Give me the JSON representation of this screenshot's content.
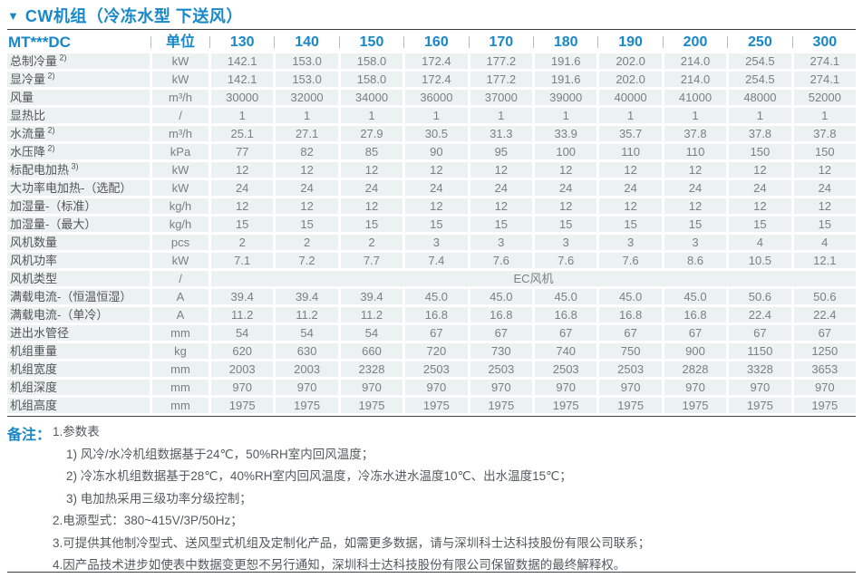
{
  "icons": {
    "triangle_down": "▼"
  },
  "colors": {
    "accent_blue": "#1888c8",
    "cell_band": "#ecf2f1",
    "value_gray": "#7b8081"
  },
  "title": "CW机组（冷冻水型 下送风）",
  "table": {
    "model_header": "MT***DC",
    "unit_header": "单位",
    "columns": [
      "130",
      "140",
      "150",
      "160",
      "170",
      "180",
      "190",
      "200",
      "250",
      "300"
    ],
    "rows": [
      {
        "label": "总制冷量",
        "sup": "2)",
        "unit": "kW",
        "values": [
          "142.1",
          "153.0",
          "158.0",
          "172.4",
          "177.2",
          "191.6",
          "202.0",
          "214.0",
          "254.5",
          "274.1"
        ]
      },
      {
        "label": "显冷量",
        "sup": "2)",
        "unit": "kW",
        "values": [
          "142.1",
          "153.0",
          "158.0",
          "172.4",
          "177.2",
          "191.6",
          "202.0",
          "214.0",
          "254.5",
          "274.1"
        ]
      },
      {
        "label": "风量",
        "unit": "m³/h",
        "values": [
          "30000",
          "32000",
          "34000",
          "36000",
          "37000",
          "39000",
          "40000",
          "41000",
          "48000",
          "52000"
        ]
      },
      {
        "label": "显热比",
        "unit": "/",
        "values": [
          "1",
          "1",
          "1",
          "1",
          "1",
          "1",
          "1",
          "1",
          "1",
          "1"
        ]
      },
      {
        "label": "水流量",
        "sup": "2)",
        "unit": "m³/h",
        "values": [
          "25.1",
          "27.1",
          "27.9",
          "30.5",
          "31.3",
          "33.9",
          "35.7",
          "37.8",
          "37.8",
          "37.8"
        ]
      },
      {
        "label": "水压降",
        "sup": "2)",
        "unit": "kPa",
        "values": [
          "77",
          "82",
          "85",
          "90",
          "95",
          "100",
          "110",
          "110",
          "150",
          "150"
        ]
      },
      {
        "label": "标配电加热",
        "sup": "3)",
        "unit": "kW",
        "values": [
          "12",
          "12",
          "12",
          "12",
          "12",
          "12",
          "12",
          "12",
          "12",
          "12"
        ]
      },
      {
        "label": "大功率电加热-（选配）",
        "unit": "kW",
        "values": [
          "24",
          "24",
          "24",
          "24",
          "24",
          "24",
          "24",
          "24",
          "24",
          "24"
        ]
      },
      {
        "label": "加湿量-（标准）",
        "unit": "kg/h",
        "values": [
          "12",
          "12",
          "12",
          "12",
          "12",
          "12",
          "12",
          "12",
          "12",
          "12"
        ]
      },
      {
        "label": "加湿量-（最大）",
        "unit": "kg/h",
        "values": [
          "15",
          "15",
          "15",
          "15",
          "15",
          "15",
          "15",
          "15",
          "15",
          "15"
        ]
      },
      {
        "label": "风机数量",
        "unit": "pcs",
        "values": [
          "2",
          "2",
          "2",
          "3",
          "3",
          "3",
          "3",
          "3",
          "4",
          "4"
        ]
      },
      {
        "label": "风机功率",
        "unit": "kW",
        "values": [
          "7.1",
          "7.2",
          "7.7",
          "7.4",
          "7.6",
          "7.6",
          "7.6",
          "8.6",
          "10.5",
          "12.1"
        ]
      },
      {
        "label": "风机类型",
        "unit": "/",
        "span_value": "EC风机"
      },
      {
        "label": "满载电流-（恒温恒湿）",
        "unit": "A",
        "values": [
          "39.4",
          "39.4",
          "39.4",
          "45.0",
          "45.0",
          "45.0",
          "45.0",
          "45.0",
          "50.6",
          "50.6"
        ]
      },
      {
        "label": "满载电流-（单冷）",
        "unit": "A",
        "values": [
          "11.2",
          "11.2",
          "11.2",
          "16.8",
          "16.8",
          "16.8",
          "16.8",
          "16.8",
          "22.4",
          "22.4"
        ]
      },
      {
        "label": "进出水管径",
        "unit": "mm",
        "values": [
          "54",
          "54",
          "54",
          "67",
          "67",
          "67",
          "67",
          "67",
          "67",
          "67"
        ]
      },
      {
        "label": "机组重量",
        "unit": "kg",
        "values": [
          "620",
          "630",
          "660",
          "720",
          "730",
          "740",
          "750",
          "900",
          "1150",
          "1250"
        ]
      },
      {
        "label": "机组宽度",
        "unit": "mm",
        "values": [
          "2003",
          "2003",
          "2328",
          "2503",
          "2503",
          "2503",
          "2503",
          "2828",
          "3328",
          "3653"
        ]
      },
      {
        "label": "机组深度",
        "unit": "mm",
        "values": [
          "970",
          "970",
          "970",
          "970",
          "970",
          "970",
          "970",
          "970",
          "970",
          "970"
        ]
      },
      {
        "label": "机组高度",
        "unit": "mm",
        "values": [
          "1975",
          "1975",
          "1975",
          "1975",
          "1975",
          "1975",
          "1975",
          "1975",
          "1975",
          "1975"
        ]
      }
    ]
  },
  "notes": {
    "heading": "备注：",
    "items": [
      {
        "indent": 1,
        "text": "1.参数表"
      },
      {
        "indent": 2,
        "text": "1) 风冷/水冷机组数据基于24℃，50%RH室内回风温度；"
      },
      {
        "indent": 2,
        "text": "2) 冷冻水机组数据基于28℃，40%RH室内回风温度，冷冻水进水温度10℃、出水温度15℃；"
      },
      {
        "indent": 2,
        "text": "3) 电加热采用三级功率分级控制；"
      },
      {
        "indent": 1,
        "text": "2.电源型式：380~415V/3P/50Hz；"
      },
      {
        "indent": 1,
        "text": "3.可提供其他制冷型式、送风型式机组及定制化产品，如需更多数据，请与深圳科士达科技股份有限公司联系；"
      },
      {
        "indent": 1,
        "text": "4.因产品技术进步如使表中数据变更恕不另行通知，深圳科士达科技股份有限公司保留数据的最终解释权。"
      }
    ]
  }
}
